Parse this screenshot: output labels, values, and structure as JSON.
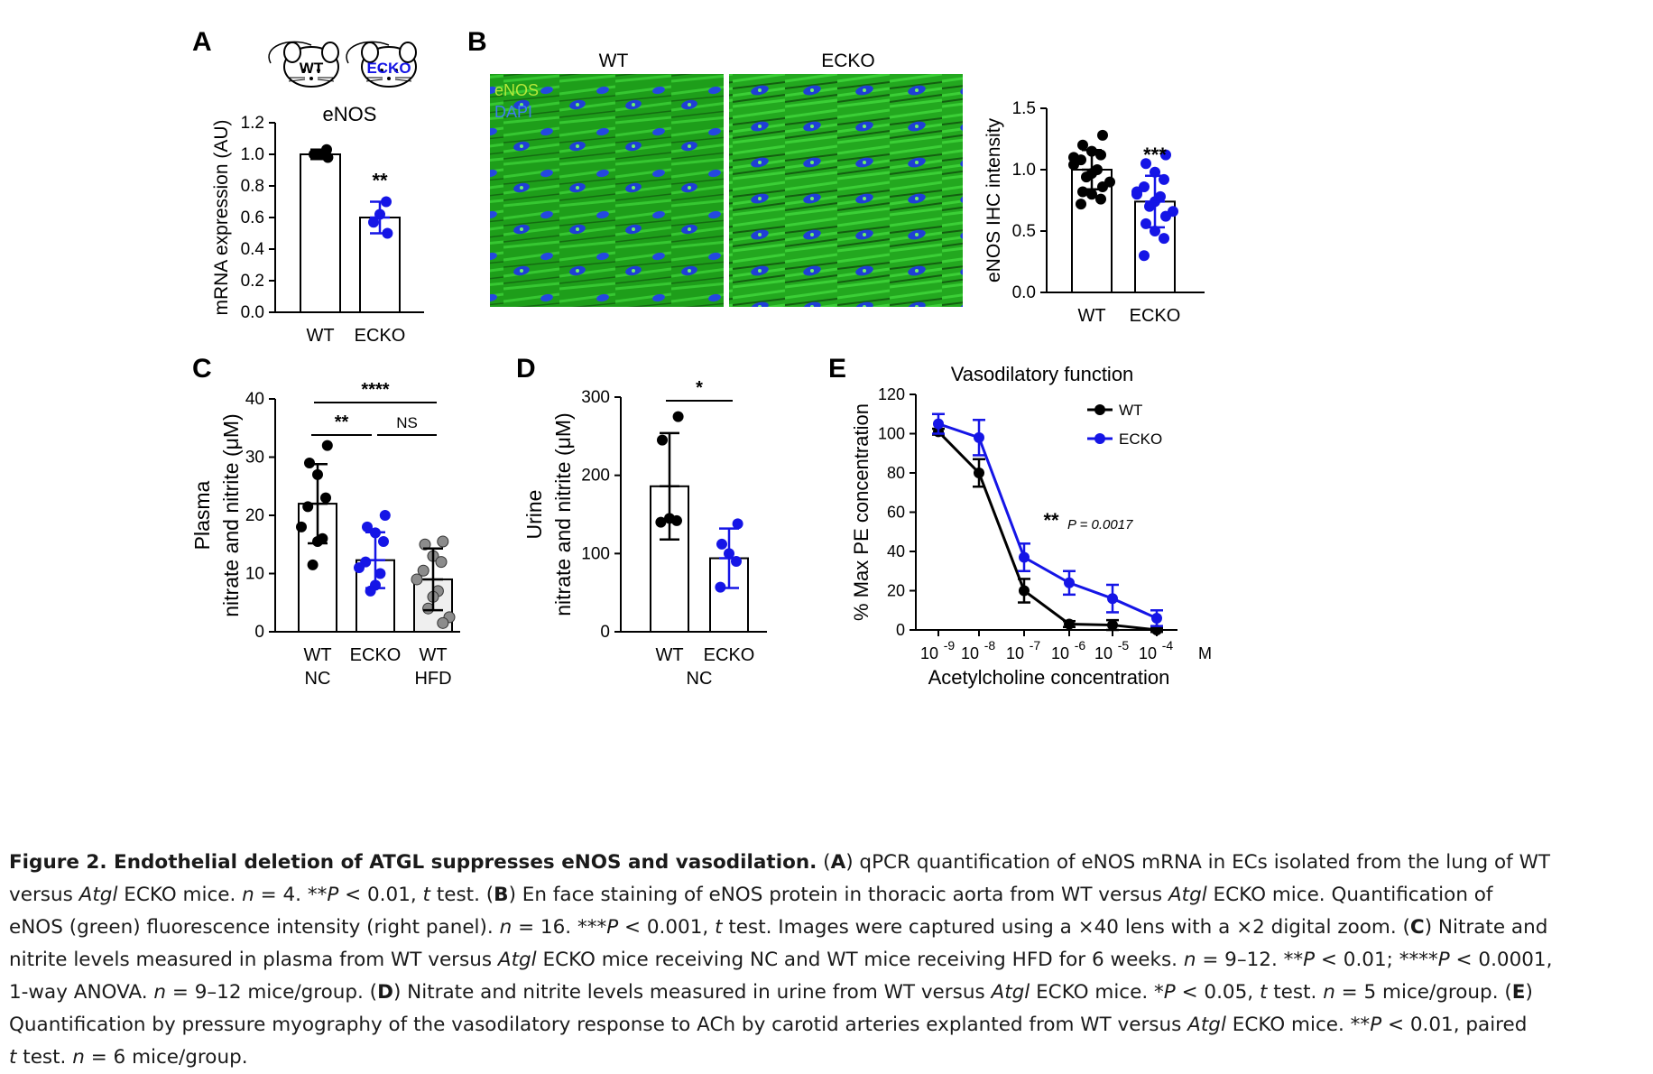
{
  "panel_letters": {
    "a": "A",
    "b": "B",
    "c": "C",
    "d": "D",
    "e": "E"
  },
  "colors": {
    "wt": "#000000",
    "ecko": "#1515e6",
    "hfd": "#8c8c8c",
    "stain_green": "#22b51f",
    "stain_blue": "#1f3fd6"
  },
  "icons": {
    "wt_mouse": "mouse-icon",
    "ecko_mouse": "mouse-icon"
  },
  "mouse_labels": {
    "wt": "WT",
    "ecko": "ECKO"
  },
  "micrograph": {
    "wt_label": "WT",
    "ecko_label": "ECKO",
    "legend_enos": "eNOS",
    "legend_dapi": "DAPI"
  },
  "chart_data": [
    {
      "id": "A",
      "type": "bar",
      "title": "eNOS",
      "ylabel": "mRNA expression (AU)",
      "ylim": [
        0,
        1.2
      ],
      "yticks": [
        0,
        0.2,
        0.4,
        0.6,
        0.8,
        1.0,
        1.2
      ],
      "ytick_labels": [
        "0.0",
        "0.2",
        "0.4",
        "0.6",
        "0.8",
        "1.0",
        "1.2"
      ],
      "categories": [
        "WT",
        "ECKO"
      ],
      "values": [
        1.0,
        0.6
      ],
      "errors": [
        0.03,
        0.1
      ],
      "points": [
        [
          0.98,
          1.0,
          1.0,
          1.03
        ],
        [
          0.5,
          0.57,
          0.62,
          0.7
        ]
      ],
      "annotation": "**"
    },
    {
      "id": "B",
      "type": "bar",
      "title": "",
      "ylabel": "eNOS IHC intensity",
      "ylim": [
        0,
        1.5
      ],
      "yticks": [
        0,
        0.5,
        1.0,
        1.5
      ],
      "ytick_labels": [
        "0.0",
        "0.5",
        "1.0",
        "1.5"
      ],
      "categories": [
        "WT",
        "ECKO"
      ],
      "values": [
        1.0,
        0.74
      ],
      "errors": [
        0.16,
        0.21
      ],
      "points": [
        [
          1.28,
          1.2,
          1.15,
          1.12,
          1.08,
          1.04,
          1.0,
          0.97,
          0.94,
          0.9,
          0.86,
          0.82,
          0.8,
          0.76,
          0.72,
          1.1
        ],
        [
          1.12,
          1.05,
          0.98,
          0.92,
          0.86,
          0.82,
          0.78,
          0.74,
          0.7,
          0.66,
          0.62,
          0.56,
          0.5,
          0.44,
          0.3,
          0.8
        ]
      ],
      "annotation": "***"
    },
    {
      "id": "C",
      "type": "bar",
      "title": "",
      "ylabel_lines": [
        "Plasma",
        "nitrate and nitrite (μM)"
      ],
      "ylim": [
        0,
        40
      ],
      "yticks": [
        0,
        10,
        20,
        30,
        40
      ],
      "ytick_labels": [
        "0",
        "10",
        "20",
        "30",
        "40"
      ],
      "categories": [
        "WT",
        "ECKO",
        "WT"
      ],
      "sublabels": [
        "NC",
        "",
        "HFD"
      ],
      "values": [
        22,
        12.3,
        9
      ],
      "errors": [
        6.8,
        4.8,
        5.3
      ],
      "points": [
        [
          32,
          29,
          27,
          23,
          21.5,
          18,
          16,
          15.5,
          11.5
        ],
        [
          20,
          18,
          17,
          15.5,
          12,
          11,
          10,
          8,
          7
        ],
        [
          15.5,
          15,
          13,
          12,
          10.5,
          9,
          7,
          6,
          4,
          2.5,
          1.5
        ]
      ],
      "brackets": [
        {
          "from": 0,
          "to": 2,
          "label": "****"
        },
        {
          "from": 0,
          "to": 1,
          "label": "**"
        },
        {
          "from": 1,
          "to": 2,
          "label": "NS"
        }
      ]
    },
    {
      "id": "D",
      "type": "bar",
      "title": "",
      "ylabel_lines": [
        "Urine",
        "nitrate and nitrite (μM)"
      ],
      "ylim": [
        0,
        300
      ],
      "yticks": [
        0,
        100,
        200,
        300
      ],
      "ytick_labels": [
        "0",
        "100",
        "200",
        "300"
      ],
      "categories": [
        "WT",
        "ECKO"
      ],
      "group_label": "NC",
      "values": [
        186,
        94
      ],
      "errors": [
        68,
        38
      ],
      "points": [
        [
          275,
          245,
          145,
          142,
          140
        ],
        [
          138,
          112,
          100,
          90,
          57
        ]
      ],
      "brackets": [
        {
          "from": 0,
          "to": 1,
          "label": "*"
        }
      ]
    },
    {
      "id": "E",
      "type": "line",
      "title": "Vasodilatory function",
      "xlabel": "Acetylcholine concentration",
      "x_unit": "M",
      "ylabel": "% Max PE concentration",
      "ylim": [
        0,
        120
      ],
      "yticks": [
        0,
        20,
        40,
        60,
        80,
        100,
        120
      ],
      "ytick_labels": [
        "0",
        "20",
        "40",
        "60",
        "80",
        "100",
        "120"
      ],
      "x": [
        -9,
        -8,
        -7,
        -6,
        -5,
        -4
      ],
      "xtick_bases": [
        "10",
        "10",
        "10",
        "10",
        "10",
        "10"
      ],
      "xtick_exps": [
        "-9",
        "-8",
        "-7",
        "-6",
        "-5",
        "-4"
      ],
      "series": [
        {
          "name": "WT",
          "values": [
            101,
            80,
            20,
            3,
            2.5,
            0
          ],
          "errors": [
            1.5,
            7,
            6,
            1.5,
            2.5,
            1
          ]
        },
        {
          "name": "ECKO",
          "values": [
            105,
            98,
            37,
            24,
            16,
            6
          ],
          "errors": [
            5,
            9,
            7,
            6,
            7,
            4
          ]
        }
      ],
      "annotation_stars": "**",
      "annotation_p": "P = 0.0017"
    }
  ],
  "caption": {
    "title": "Figure 2. Endothelial deletion of ATGL suppresses eNOS and vasodilation.",
    "l1a": " (",
    "l1b": "A",
    "l1c": ") qPCR quantification of eNOS mRNA in ECs isolated from the lung of WT",
    "l2a": "versus ",
    "l2b": "Atgl",
    "l2c": " ECKO mice. ",
    "l2d": "n",
    "l2e": " = 4. **",
    "l2f": "P",
    "l2g": " < 0.01, ",
    "l2h": "t",
    "l2i": " test. (",
    "l2j": "B",
    "l2k": ") En face staining of eNOS protein in thoracic aorta from WT versus ",
    "l2l": "Atgl",
    "l2m": " ECKO mice. Quantification of",
    "l3a": "eNOS (green) fluorescence intensity (right panel). ",
    "l3b": "n",
    "l3c": " = 16. ***",
    "l3d": "P",
    "l3e": " < 0.001, ",
    "l3f": "t",
    "l3g": " test. Images were captured using a ×40 lens with a ×2 digital zoom. (",
    "l3h": "C",
    "l3i": ") Nitrate and",
    "l4a": "nitrite levels measured in plasma from WT versus ",
    "l4b": "Atgl",
    "l4c": " ECKO mice receiving NC and WT mice receiving HFD for 6 weeks. ",
    "l4d": "n",
    "l4e": " = 9–12. **",
    "l4f": "P",
    "l4g": " < 0.01; ****",
    "l4h": "P",
    "l4i": " < 0.0001,",
    "l5a": "1-way ANOVA. ",
    "l5b": "n",
    "l5c": " = 9–12 mice/group. (",
    "l5d": "D",
    "l5e": ") Nitrate and nitrite levels measured in urine from WT versus ",
    "l5f": "Atgl",
    "l5g": " ECKO mice. *",
    "l5h": "P",
    "l5i": " < 0.05, ",
    "l5j": "t",
    "l5k": " test. ",
    "l5l": "n",
    "l5m": " = 5 mice/group. (",
    "l5n": "E",
    "l5o": ")",
    "l6a": "Quantification by pressure myography of the vasodilatory response to ACh by carotid arteries explanted from WT versus ",
    "l6b": "Atgl",
    "l6c": " ECKO mice. **",
    "l6d": "P",
    "l6e": " < 0.01, paired",
    "l7a": "t",
    "l7b": " test. ",
    "l7c": "n",
    "l7d": " = 6 mice/group."
  }
}
